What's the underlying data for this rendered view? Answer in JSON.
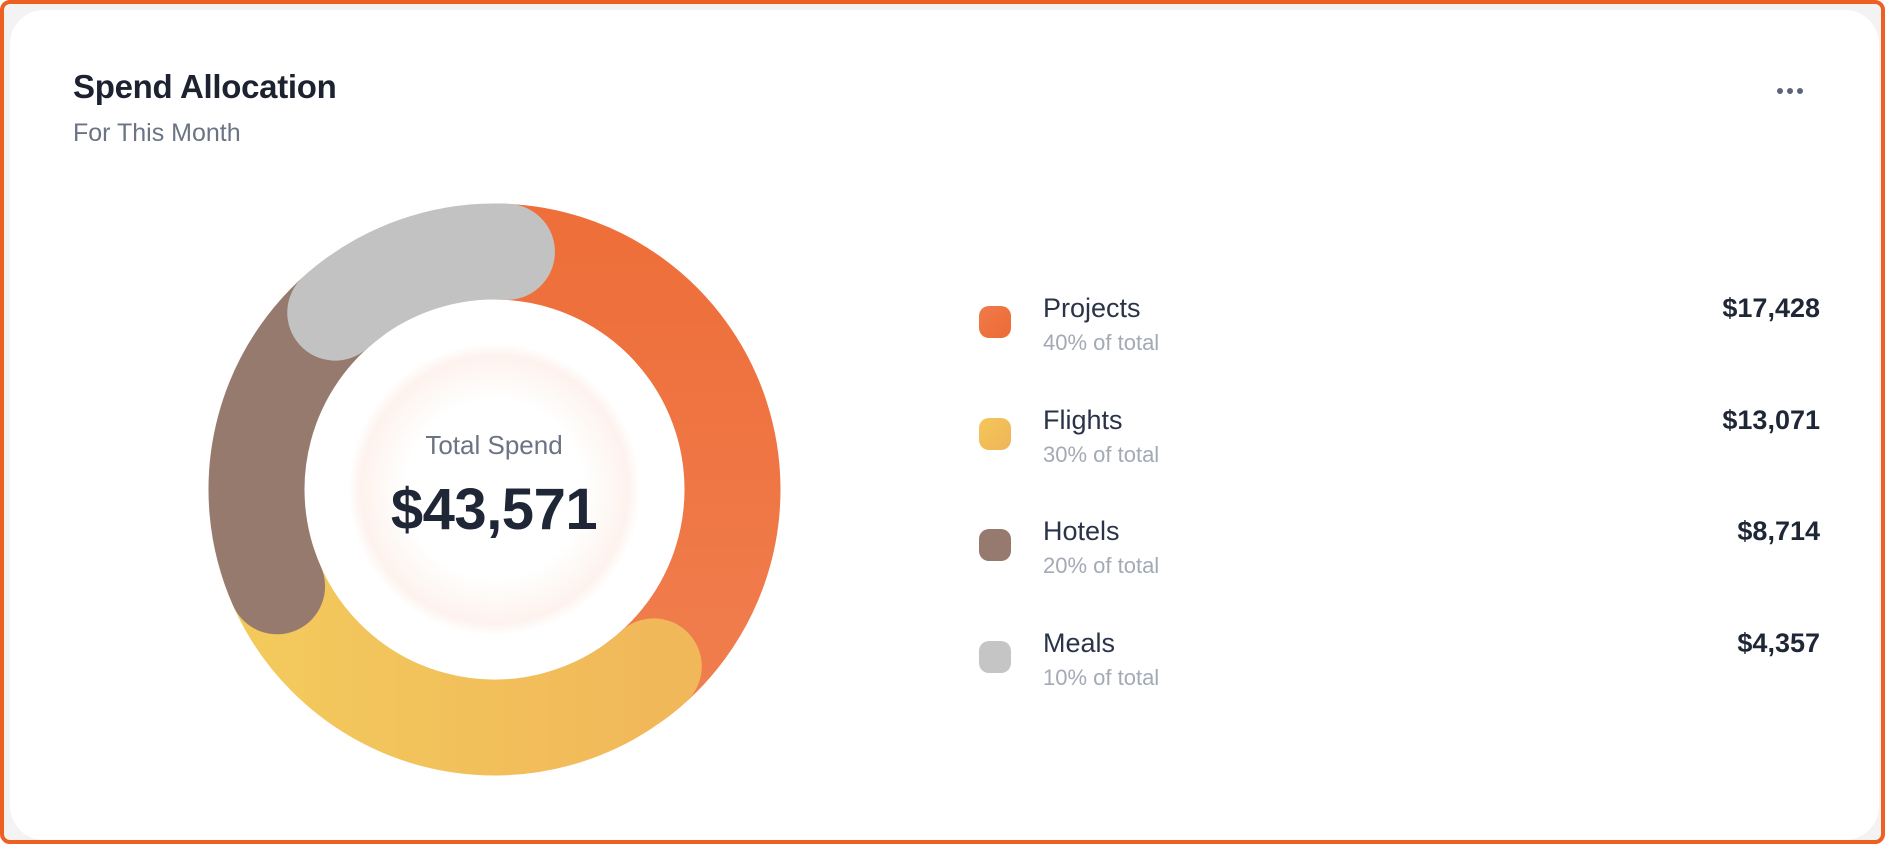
{
  "header": {
    "title": "Spend Allocation",
    "subtitle": "For This Month",
    "more_icon": "more-horizontal-icon"
  },
  "colors": {
    "frame_border": "#EE5F22",
    "projects": "#EE7240",
    "flights": "#F2C15A",
    "hotels": "#967A6E",
    "meals": "#C2C2C2"
  },
  "center": {
    "label": "Total Spend",
    "value": "$43,571"
  },
  "legend": [
    {
      "label": "Projects",
      "percent_text": "40% of total",
      "value": "$17,428",
      "color": "#EE7240"
    },
    {
      "label": "Flights",
      "percent_text": "30% of total",
      "value": "$13,071",
      "color": "#F2C15A"
    },
    {
      "label": "Hotels",
      "percent_text": "20% of total",
      "value": "$8,714",
      "color": "#967A6E"
    },
    {
      "label": "Meals",
      "percent_text": "10% of total",
      "value": "$4,357",
      "color": "#C2C2C2"
    }
  ],
  "chart_data": {
    "type": "pie",
    "variant": "donut",
    "title": "Spend Allocation",
    "subtitle": "For This Month",
    "center_label": "Total Spend",
    "total": 43571,
    "categories": [
      "Projects",
      "Flights",
      "Hotels",
      "Meals"
    ],
    "values": [
      17428,
      13071,
      8714,
      4357
    ],
    "percentages": [
      40,
      30,
      20,
      10
    ],
    "colors": [
      "#EE7240",
      "#F2C15A",
      "#967A6E",
      "#C2C2C2"
    ],
    "legend_position": "right",
    "start_angle_deg": 0,
    "direction": "clockwise"
  }
}
